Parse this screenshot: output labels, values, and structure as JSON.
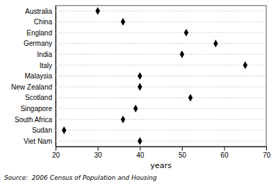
{
  "chart_data": {
    "type": "dot",
    "categories": [
      "Australia",
      "China",
      "England",
      "Germany",
      "India",
      "Italy",
      "Malaysia",
      "New Zealand",
      "Scotland",
      "Singapore",
      "South Africa",
      "Sudan",
      "Viet Nam"
    ],
    "values": [
      30,
      36,
      51,
      58,
      50,
      65,
      40,
      40,
      52,
      39,
      36,
      22,
      40
    ],
    "xlabel": "years",
    "xlim": [
      20,
      70
    ],
    "xticks": [
      20,
      30,
      40,
      50,
      60,
      70
    ],
    "color": "#000000",
    "marker": "diamond",
    "line_style": "dotted",
    "annotations": [
      "Source:  2006 Census of Population and Housing"
    ]
  }
}
